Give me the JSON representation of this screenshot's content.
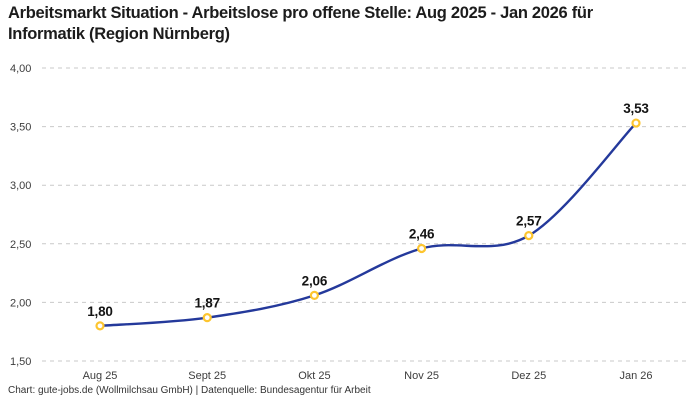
{
  "header": {
    "title": "Arbeitsmarkt Situation - Arbeitslose pro offene Stelle: Aug 2025 - Jan 2026 für Informatik (Region Nürnberg)"
  },
  "footer": {
    "attribution": "Chart: gute-jobs.de (Wollmilchsau GmbH) | Datenquelle: Bundesagentur für Arbeit"
  },
  "chart_data": {
    "type": "line",
    "title": "Arbeitsmarkt Situation - Arbeitslose pro offene Stelle: Aug 2025 - Jan 2026 für Informatik (Region Nürnberg)",
    "categories": [
      "Aug 25",
      "Sept 25",
      "Okt 25",
      "Nov 25",
      "Dez 25",
      "Jan 26"
    ],
    "values": [
      1.8,
      1.87,
      2.06,
      2.46,
      2.57,
      3.53
    ],
    "value_labels": [
      "1,80",
      "1,87",
      "2,06",
      "2,46",
      "2,57",
      "3,53"
    ],
    "xlabel": "",
    "ylabel": "",
    "ylim": [
      1.5,
      4.0
    ],
    "y_ticks": [
      {
        "value": 4.0,
        "label": "4,00"
      },
      {
        "value": 3.5,
        "label": "3,50"
      },
      {
        "value": 3.0,
        "label": "3,00"
      },
      {
        "value": 2.5,
        "label": "2,50"
      },
      {
        "value": 2.0,
        "label": "2,00"
      },
      {
        "value": 1.5,
        "label": "1,50"
      }
    ],
    "grid": "horizontal-dashed",
    "legend_position": "none",
    "line_interpolation": "smooth",
    "colors": {
      "line": "#24399b",
      "marker_stroke": "#fdc52f",
      "marker_fill": "#ffffff",
      "grid": "#c9c9c9",
      "title_text": "#1c1c1c",
      "data_label": "#141414",
      "axis_label": "#3d3d3d",
      "background": "#ffffff"
    }
  }
}
